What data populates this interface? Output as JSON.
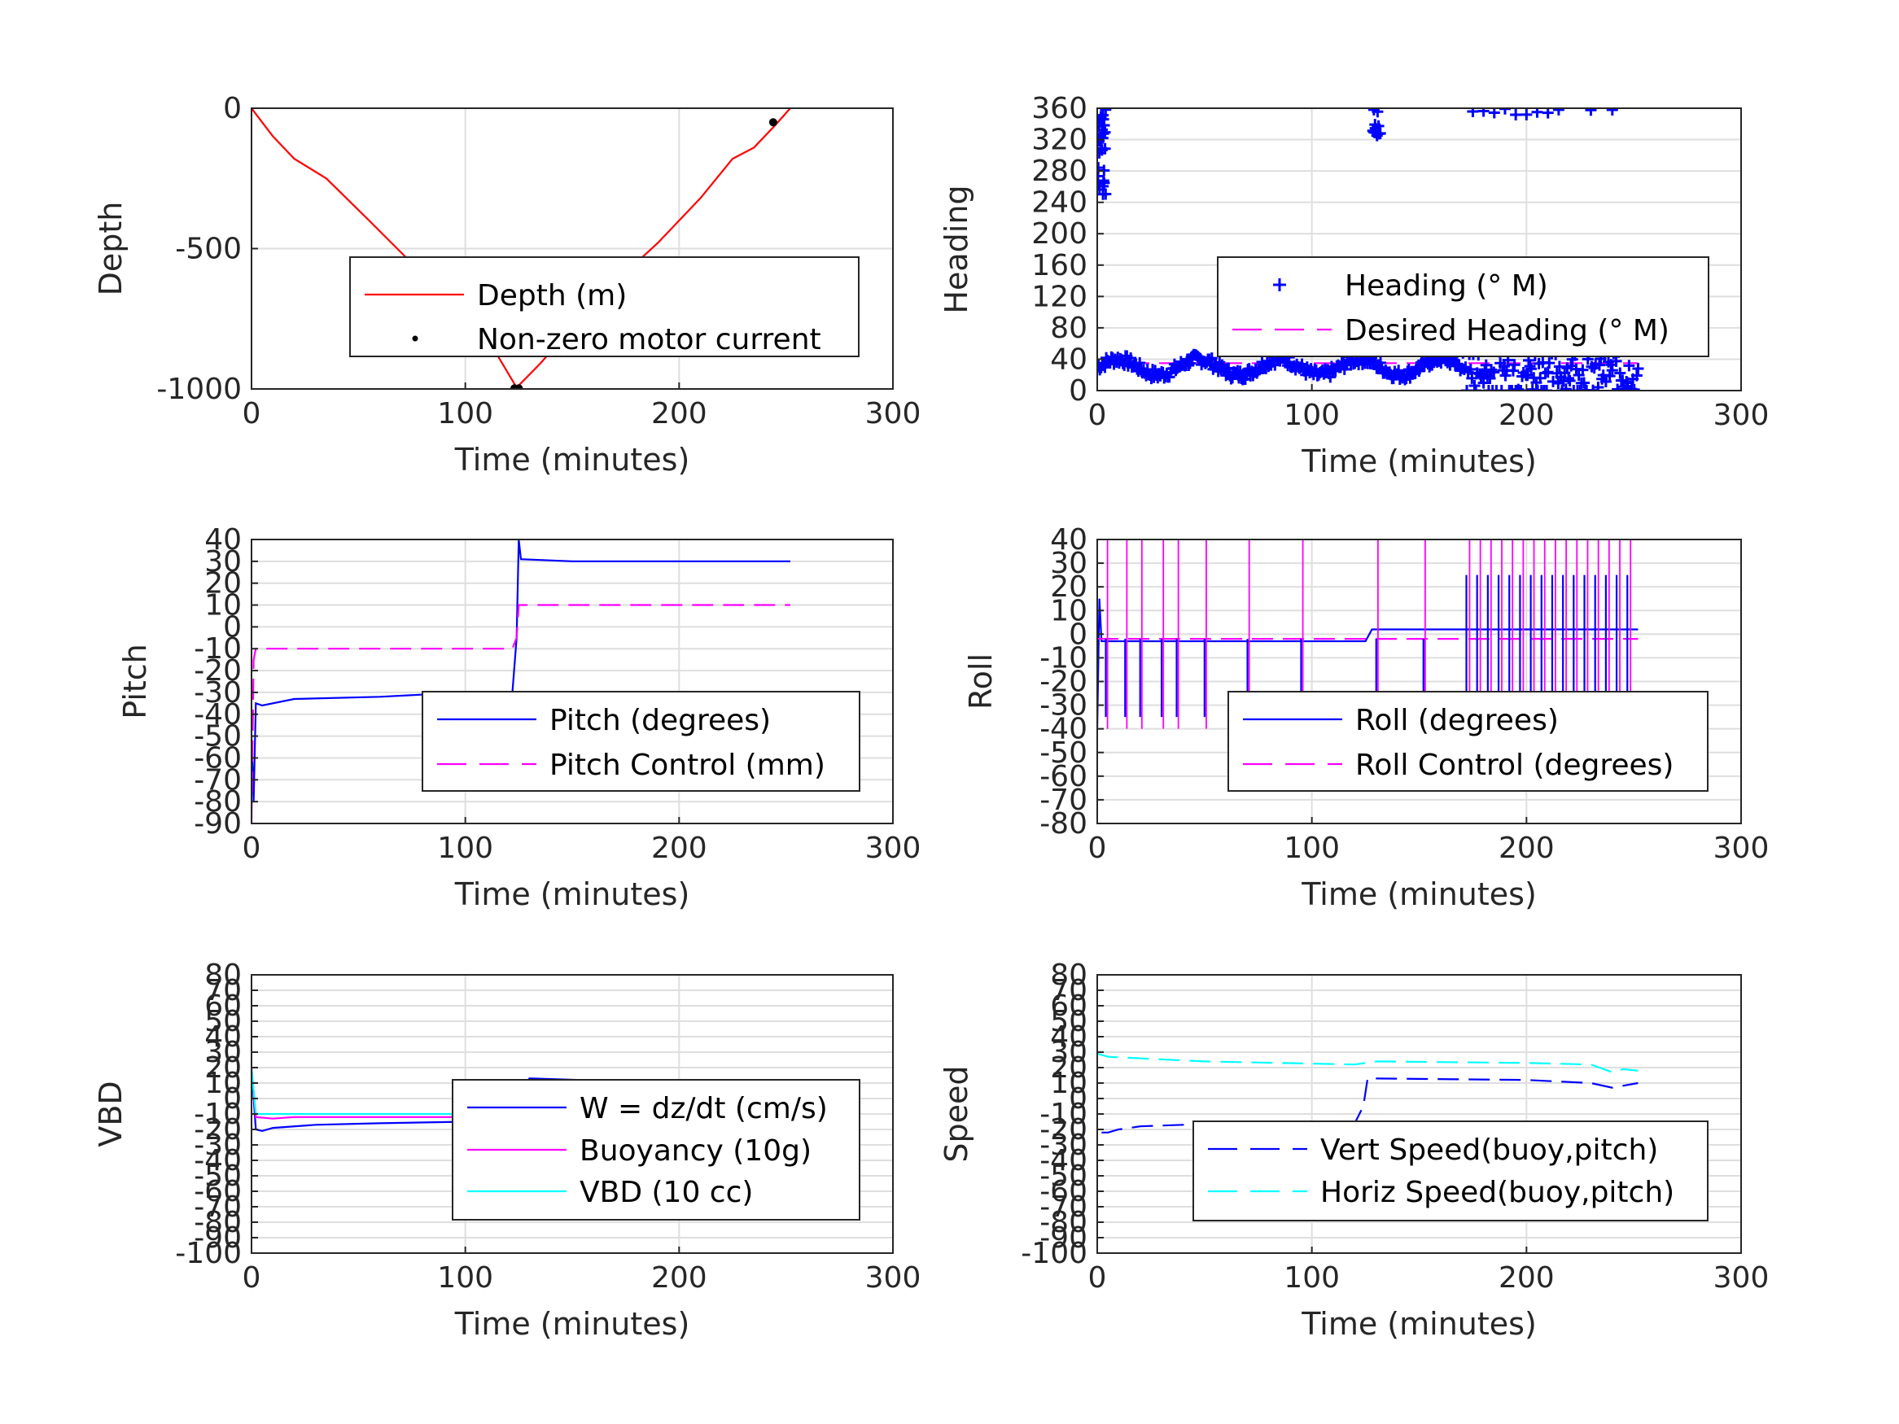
{
  "chart_data": [
    {
      "id": "depth",
      "type": "line",
      "xlabel": "Time (minutes)",
      "ylabel": "Depth",
      "xlim": [
        0,
        300
      ],
      "ylim": [
        -1000,
        0
      ],
      "xticks": [
        "0",
        "100",
        "200",
        "300"
      ],
      "yticks": [
        "0",
        "-500",
        "-1000"
      ],
      "legend_placement": "center-right",
      "series": [
        {
          "name": "Depth (m)",
          "style": "solid",
          "color": "#ff0000",
          "x": [
            0,
            5,
            10,
            20,
            35,
            55,
            80,
            100,
            115,
            124,
            135,
            150,
            170,
            190,
            210,
            225,
            235,
            245,
            252
          ],
          "y": [
            0,
            -50,
            -100,
            -180,
            -250,
            -400,
            -590,
            -770,
            -880,
            -995,
            -910,
            -780,
            -620,
            -480,
            -320,
            -180,
            -140,
            -60,
            0
          ]
        },
        {
          "name": "Non-zero motor current",
          "style": "dot",
          "color": "#000000",
          "x": [
            123,
            125,
            244
          ],
          "y": [
            -998,
            -998,
            -50
          ]
        }
      ]
    },
    {
      "id": "heading",
      "type": "scatter",
      "xlabel": "Time (minutes)",
      "ylabel": "Heading",
      "xlim": [
        0,
        300
      ],
      "ylim": [
        0,
        360
      ],
      "xticks": [
        "0",
        "100",
        "200",
        "300"
      ],
      "yticks": [
        "0",
        "40",
        "80",
        "120",
        "160",
        "200",
        "240",
        "280",
        "320",
        "360"
      ],
      "legend_placement": "center-right",
      "series": [
        {
          "name": "Heading (° M)",
          "style": "plus",
          "color": "#0000ff"
        },
        {
          "name": "Desired Heading (° M)",
          "style": "dashed",
          "color": "#ff00ff",
          "x": [
            0,
            252
          ],
          "y": [
            35,
            35
          ]
        }
      ]
    },
    {
      "id": "pitch",
      "type": "line",
      "xlabel": "Time (minutes)",
      "ylabel": "Pitch",
      "xlim": [
        0,
        300
      ],
      "ylim": [
        -90,
        40
      ],
      "xticks": [
        "0",
        "100",
        "200",
        "300"
      ],
      "yticks": [
        "40",
        "30",
        "20",
        "10",
        "0",
        "-10",
        "-20",
        "-30",
        "-40",
        "-50",
        "-60",
        "-70",
        "-80",
        "-90"
      ],
      "legend_placement": "center-right",
      "series": [
        {
          "name": "Pitch (degrees)",
          "style": "solid",
          "color": "#0000ff",
          "x": [
            0,
            1,
            2,
            5,
            20,
            60,
            100,
            122,
            124,
            125,
            126,
            150,
            200,
            252
          ],
          "y": [
            -50,
            -80,
            -35,
            -36,
            -33,
            -32,
            -30,
            -30,
            -5,
            40,
            31,
            30,
            30,
            30
          ]
        },
        {
          "name": "Pitch Control (mm)",
          "style": "dashed",
          "color": "#ff00ff",
          "x": [
            0,
            1,
            2,
            122,
            124,
            125,
            252
          ],
          "y": [
            -90,
            -15,
            -10,
            -10,
            -5,
            10,
            10
          ]
        }
      ]
    },
    {
      "id": "roll",
      "type": "line",
      "xlabel": "Time (minutes)",
      "ylabel": "Roll",
      "xlim": [
        0,
        300
      ],
      "ylim": [
        -80,
        40
      ],
      "xticks": [
        "0",
        "100",
        "200",
        "300"
      ],
      "yticks": [
        "40",
        "30",
        "20",
        "10",
        "0",
        "-10",
        "-20",
        "-30",
        "-40",
        "-50",
        "-60",
        "-70",
        "-80"
      ],
      "legend_placement": "center-right",
      "series": [
        {
          "name": "Roll (degrees)",
          "style": "solid",
          "color": "#0000ff"
        },
        {
          "name": "Roll Control (degrees)",
          "style": "dashed",
          "color": "#ff00ff"
        }
      ]
    },
    {
      "id": "vbd",
      "type": "line",
      "xlabel": "Time (minutes)",
      "ylabel": "VBD",
      "xlim": [
        0,
        300
      ],
      "ylim": [
        -100,
        80
      ],
      "xticks": [
        "0",
        "100",
        "200",
        "300"
      ],
      "yticks": [
        "80",
        "70",
        "60",
        "50",
        "40",
        "30",
        "20",
        "10",
        "0",
        "-10",
        "-20",
        "-30",
        "-40",
        "-50",
        "-60",
        "-70",
        "-80",
        "-90",
        "-100"
      ],
      "legend_placement": "center-right",
      "series": [
        {
          "name": "W = dz/dt (cm/s)",
          "style": "solid",
          "color": "#0000ff",
          "x": [
            0,
            2,
            5,
            10,
            30,
            60,
            100,
            122,
            124,
            130,
            200,
            240,
            252
          ],
          "y": [
            20,
            -20,
            -21,
            -19,
            -17,
            -16,
            -15,
            -15,
            0,
            13,
            10,
            8,
            8
          ]
        },
        {
          "name": "Buoyancy (10g)",
          "style": "solid",
          "color": "#ff00ff",
          "x": [
            0,
            2,
            10,
            20,
            100,
            122,
            124,
            130,
            200,
            225,
            240,
            252
          ],
          "y": [
            20,
            -12,
            -13,
            -12,
            -12,
            -12,
            5,
            8,
            8,
            7,
            3,
            8
          ]
        },
        {
          "name": "VBD (10 cc)",
          "style": "solid",
          "color": "#00ffff",
          "x": [
            0,
            2,
            122,
            124,
            252
          ],
          "y": [
            20,
            -10,
            -10,
            8,
            8
          ]
        }
      ]
    },
    {
      "id": "speed",
      "type": "line",
      "xlabel": "Time (minutes)",
      "ylabel": "Speed",
      "xlim": [
        0,
        300
      ],
      "ylim": [
        -100,
        80
      ],
      "xticks": [
        "0",
        "100",
        "200",
        "300"
      ],
      "yticks": [
        "80",
        "70",
        "60",
        "50",
        "40",
        "30",
        "20",
        "10",
        "0",
        "-10",
        "-20",
        "-30",
        "-40",
        "-50",
        "-60",
        "-70",
        "-80",
        "-90",
        "-100"
      ],
      "legend_placement": "center-right",
      "series": [
        {
          "name": "Vert Speed(buoy,pitch)",
          "style": "dashed",
          "color": "#0000ff",
          "x": [
            2,
            5,
            10,
            20,
            40,
            100,
            120,
            124,
            126,
            200,
            230,
            240,
            252
          ],
          "y": [
            -22,
            -22,
            -20,
            -18,
            -17,
            -16,
            -16,
            -5,
            13,
            12,
            10,
            7,
            10
          ]
        },
        {
          "name": "Horiz Speed(buoy,pitch)",
          "style": "dashed",
          "color": "#00ffff",
          "x": [
            0,
            5,
            50,
            120,
            130,
            200,
            230,
            240,
            245,
            252
          ],
          "y": [
            29,
            27,
            24,
            22,
            24,
            23,
            22,
            17,
            19,
            18
          ]
        }
      ]
    }
  ]
}
